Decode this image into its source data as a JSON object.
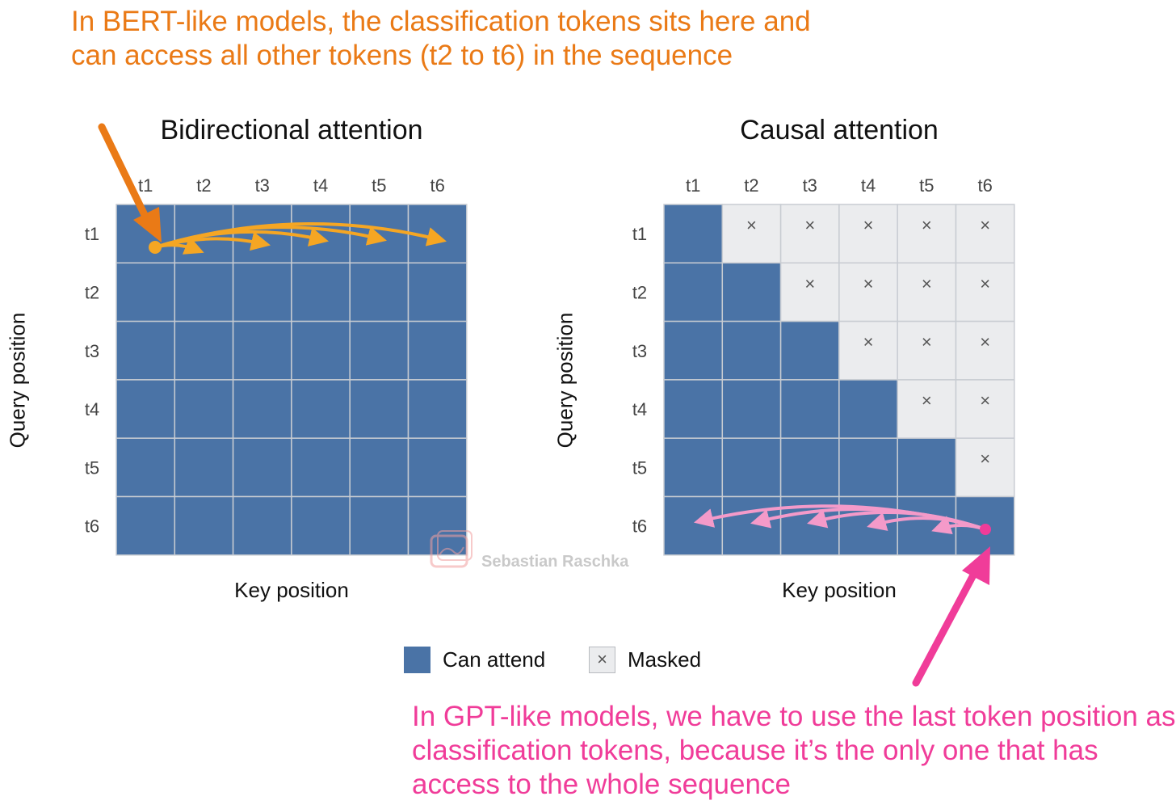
{
  "annotations": {
    "top": "In BERT-like models, the classification tokens sits here and can access all other tokens (t2 to t6) in the sequence",
    "bottom": "In GPT-like models, we have to use the last token position as classification tokens, because it’s the only one that has access to the whole sequence"
  },
  "tokens": [
    "t1",
    "t2",
    "t3",
    "t4",
    "t5",
    "t6"
  ],
  "panels": {
    "bidirectional": {
      "title": "Bidirectional attention",
      "xlabel": "Key position",
      "ylabel": "Query position"
    },
    "causal": {
      "title": "Causal attention",
      "xlabel": "Key position",
      "ylabel": "Query position"
    }
  },
  "legend": {
    "can_attend": "Can attend",
    "masked": "Masked",
    "masked_symbol": "×"
  },
  "watermark": {
    "text": "Sebastian Raschka"
  },
  "colors": {
    "attend": "#4A73A6",
    "masked": "#EBECEE",
    "grid_line": "#C8CCD2",
    "orange": "#EA7A16",
    "orange_arc": "#F5A623",
    "pink": "#F03C99",
    "pink_arc": "#F49AC9"
  }
}
